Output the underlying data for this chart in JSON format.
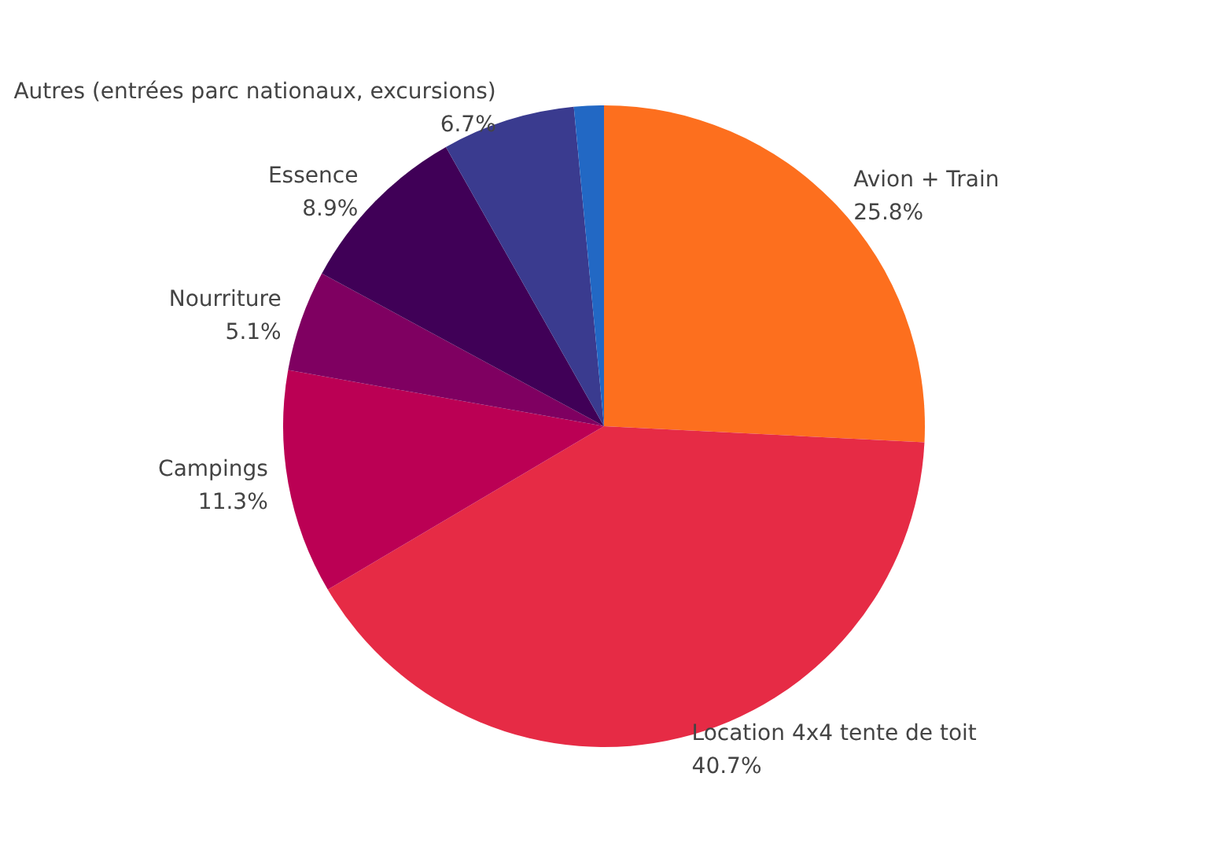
{
  "chart_data": {
    "type": "pie",
    "categories": [
      "Avion + Train",
      "Location 4x4 tente de toit",
      "Campings",
      "Nourriture",
      "Essence",
      "Autres (entrées parc nationaux, excursions)",
      null
    ],
    "values": [
      25.8,
      40.7,
      11.3,
      5.1,
      8.9,
      6.7,
      1.5
    ],
    "value_labels": [
      "25.8%",
      "40.7%",
      "11.3%",
      "5.1%",
      "8.9%",
      "6.7%",
      null
    ],
    "colors": [
      "#fd6f1e",
      "#e62b45",
      "#bb0054",
      "#7f0061",
      "#400057",
      "#3a3b8f",
      "#2268c4"
    ],
    "legend": false
  }
}
